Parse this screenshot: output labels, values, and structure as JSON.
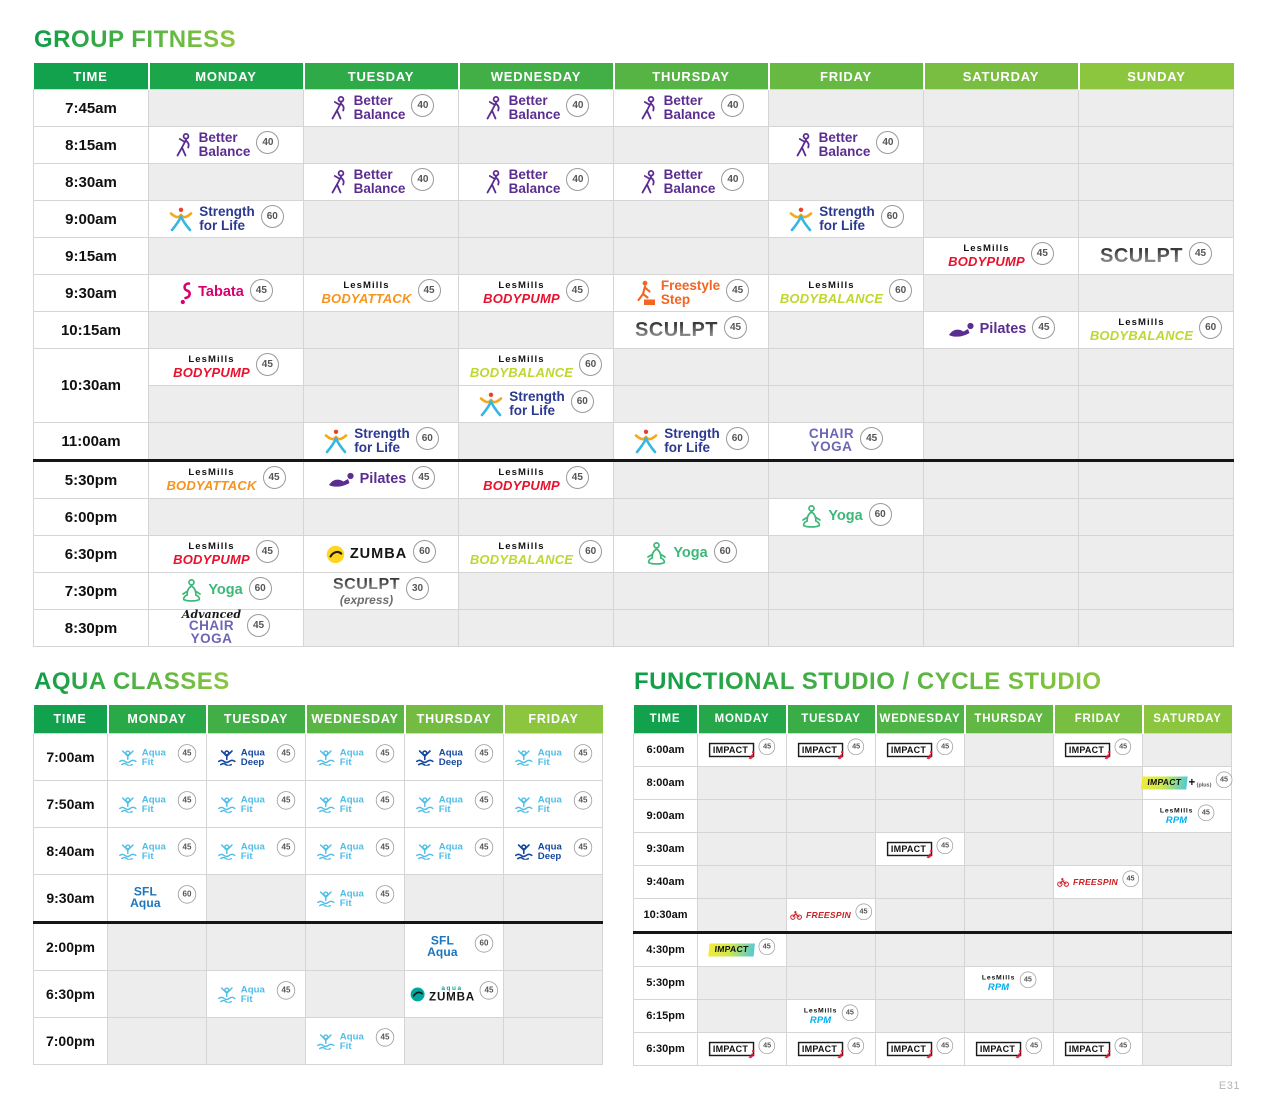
{
  "page": {
    "footer": "E31"
  },
  "colors": {
    "header_green_start": "#12A14C",
    "header_green_end": "#8CC63F",
    "title_gradient_start": "#0E9C49",
    "title_gradient_end": "#8CC63F",
    "empty_cell": "#EDEDED",
    "grid_line": "#D5D5D5",
    "divider_black": "#161616",
    "better_balance_purple": "#5C2D91",
    "strength_for_life_blue": "#2B3990",
    "tabata_magenta": "#D6006F",
    "freestyle_orange": "#F26522",
    "yoga_green": "#3CB878",
    "bodypump_red": "#E8112D",
    "bodyattack_orange": "#F7941D",
    "bodybalance_lime": "#BFD730",
    "rpm_cyan": "#00AEEF",
    "freespin_red": "#CB2026",
    "aqua_fit_blue": "#4FBEE8",
    "aqua_deep_navy": "#15489E",
    "sfl_aqua_blue": "#1B75BC",
    "zumba_yellow": "#FFD51E",
    "aqua_zumba_teal": "#00A79D",
    "chair_yoga_purple": "#6B66B5"
  },
  "classes": {
    "better-balance": {
      "id": "better-balance",
      "type": "figure",
      "icon": "better-balance-icon",
      "lines": [
        "Better",
        "Balance"
      ],
      "color": "#5C2D91"
    },
    "strength-for-life": {
      "id": "strength-for-life",
      "type": "figure",
      "icon": "strength-for-life-icon",
      "lines": [
        "Strength",
        "for Life"
      ],
      "color": "#2B3990"
    },
    "tabata": {
      "id": "tabata",
      "type": "figure",
      "icon": "tabata-icon",
      "lines": [
        "Tabata"
      ],
      "color": "#D6006F"
    },
    "freestyle-step": {
      "id": "freestyle-step",
      "type": "figure",
      "icon": "freestyle-step-icon",
      "lines": [
        "Freestyle",
        "Step"
      ],
      "color": "#F26522"
    },
    "pilates": {
      "id": "pilates",
      "type": "figure",
      "icon": "pilates-icon",
      "lines": [
        "Pilates"
      ],
      "color": "#5C2D91"
    },
    "yoga": {
      "id": "yoga",
      "type": "figure",
      "icon": "yoga-icon",
      "lines": [
        "Yoga"
      ],
      "color": "#3CB878"
    },
    "aqua-fit": {
      "id": "aqua-fit",
      "type": "figure",
      "icon": "aqua-fit-icon",
      "lines": [
        "Aqua Fit"
      ],
      "color": "#4FBEE8"
    },
    "aqua-deep": {
      "id": "aqua-deep",
      "type": "figure",
      "icon": "aqua-deep-icon",
      "lines": [
        "Aqua Deep"
      ],
      "color": "#15489E"
    },
    "bodypump": {
      "id": "bodypump",
      "type": "lesmills",
      "label": "LesMills",
      "brand": "BODYPUMP",
      "color": "#E8112D"
    },
    "bodyattack": {
      "id": "bodyattack",
      "type": "lesmills",
      "label": "LesMills",
      "brand": "BODYATTACK",
      "color": "#F7941D"
    },
    "bodybalance": {
      "id": "bodybalance",
      "type": "lesmills",
      "label": "LesMills",
      "brand": "BODYBALANCE",
      "color": "#BFD730"
    },
    "rpm": {
      "id": "rpm",
      "type": "lesmills",
      "label": "LesMills",
      "brand": "RPM",
      "color": "#00AEEF"
    },
    "sculpt": {
      "id": "sculpt",
      "type": "sculpt",
      "text": "SCULPT"
    },
    "sculpt-express": {
      "id": "sculpt-express",
      "type": "sculpt",
      "text": "SCULPT",
      "sub": "(express)"
    },
    "chair-yoga": {
      "id": "chair-yoga",
      "type": "stack",
      "lines": [
        "CHAIR",
        "YOGA"
      ],
      "color": "#6B66B5"
    },
    "advanced-chair-yoga": {
      "id": "advanced-chair-yoga",
      "type": "stack",
      "script": "Advanced",
      "lines": [
        "CHAIR",
        "YOGA"
      ],
      "color": "#6B66B5"
    },
    "sfl-aqua": {
      "id": "sfl-aqua",
      "type": "stack",
      "lines": [
        "SFL Aqua"
      ],
      "color": "#1B75BC"
    },
    "zumba": {
      "id": "zumba",
      "type": "zumba",
      "brand": "ZUMBA",
      "circle": "#FFD51E"
    },
    "aqua-zumba": {
      "id": "aqua-zumba",
      "type": "zumba",
      "brand": "ZUMBA",
      "over": "aqua",
      "circle": "#00A79D",
      "over_color": "#00A79D"
    },
    "impact": {
      "id": "impact",
      "type": "impact",
      "text": "IMPACT",
      "variant": "box"
    },
    "impact-colour": {
      "id": "impact-colour",
      "type": "impact",
      "text": "IMPACT",
      "variant": "colour"
    },
    "impact-plus": {
      "id": "impact-plus",
      "type": "impact",
      "text": "IMPACT",
      "variant": "plus",
      "plus": "+",
      "sub": "(plus)"
    },
    "freespin": {
      "id": "freespin",
      "type": "freespin",
      "text_light": "FREE",
      "text_bold": "SPIN",
      "color": "#CB2026"
    }
  },
  "sections": {
    "group": {
      "title": "GROUP FITNESS",
      "columns": [
        "TIME",
        "MONDAY",
        "TUESDAY",
        "WEDNESDAY",
        "THURSDAY",
        "FRIDAY",
        "SATURDAY",
        "SUNDAY"
      ],
      "time_col_width": 115,
      "rows": [
        {
          "time": "7:45am",
          "cells": [
            null,
            {
              "class": "better-balance",
              "min": 40
            },
            {
              "class": "better-balance",
              "min": 40
            },
            {
              "class": "better-balance",
              "min": 40
            },
            null,
            null,
            null
          ]
        },
        {
          "time": "8:15am",
          "cells": [
            {
              "class": "better-balance",
              "min": 40
            },
            null,
            null,
            null,
            {
              "class": "better-balance",
              "min": 40
            },
            null,
            null
          ]
        },
        {
          "time": "8:30am",
          "cells": [
            null,
            {
              "class": "better-balance",
              "min": 40
            },
            {
              "class": "better-balance",
              "min": 40
            },
            {
              "class": "better-balance",
              "min": 40
            },
            null,
            null,
            null
          ]
        },
        {
          "time": "9:00am",
          "cells": [
            {
              "class": "strength-for-life",
              "min": 60
            },
            null,
            null,
            null,
            {
              "class": "strength-for-life",
              "min": 60
            },
            null,
            null
          ]
        },
        {
          "time": "9:15am",
          "cells": [
            null,
            null,
            null,
            null,
            null,
            {
              "class": "bodypump",
              "min": 45
            },
            {
              "class": "sculpt",
              "min": 45
            }
          ]
        },
        {
          "time": "9:30am",
          "cells": [
            {
              "class": "tabata",
              "min": 45
            },
            {
              "class": "bodyattack",
              "min": 45
            },
            {
              "class": "bodypump",
              "min": 45
            },
            {
              "class": "freestyle-step",
              "min": 45
            },
            {
              "class": "bodybalance",
              "min": 60
            },
            null,
            null
          ]
        },
        {
          "time": "10:15am",
          "cells": [
            null,
            null,
            null,
            {
              "class": "sculpt",
              "min": 45
            },
            null,
            {
              "class": "pilates",
              "min": 45
            },
            {
              "class": "bodybalance",
              "min": 60
            }
          ]
        },
        {
          "time": "10:30am",
          "rowspan": 2,
          "cells": [
            {
              "class": "bodypump",
              "min": 45
            },
            null,
            {
              "class": "bodybalance",
              "min": 60
            },
            null,
            null,
            null,
            null
          ]
        },
        {
          "cont": true,
          "cells": [
            null,
            null,
            {
              "class": "strength-for-life",
              "min": 60
            },
            null,
            null,
            null,
            null
          ]
        },
        {
          "time": "11:00am",
          "cells": [
            null,
            {
              "class": "strength-for-life",
              "min": 60
            },
            null,
            {
              "class": "strength-for-life",
              "min": 60
            },
            {
              "class": "chair-yoga",
              "min": 45
            },
            null,
            null
          ]
        },
        {
          "time": "5:30pm",
          "divider": true,
          "cells": [
            {
              "class": "bodyattack",
              "min": 45
            },
            {
              "class": "pilates",
              "min": 45
            },
            {
              "class": "bodypump",
              "min": 45
            },
            null,
            null,
            null,
            null
          ]
        },
        {
          "time": "6:00pm",
          "cells": [
            null,
            null,
            null,
            null,
            {
              "class": "yoga",
              "min": 60
            },
            null,
            null
          ]
        },
        {
          "time": "6:30pm",
          "cells": [
            {
              "class": "bodypump",
              "min": 45
            },
            {
              "class": "zumba",
              "min": 60
            },
            {
              "class": "bodybalance",
              "min": 60
            },
            {
              "class": "yoga",
              "min": 60
            },
            null,
            null,
            null
          ]
        },
        {
          "time": "7:30pm",
          "cells": [
            {
              "class": "yoga",
              "min": 60
            },
            {
              "class": "sculpt-express",
              "min": 30
            },
            null,
            null,
            null,
            null,
            null
          ]
        },
        {
          "time": "8:30pm",
          "cells": [
            {
              "class": "advanced-chair-yoga",
              "min": 45
            },
            null,
            null,
            null,
            null,
            null,
            null
          ]
        }
      ]
    },
    "aqua": {
      "title": "AQUA CLASSES",
      "columns": [
        "TIME",
        "MONDAY",
        "TUESDAY",
        "WEDNESDAY",
        "THURSDAY",
        "FRIDAY"
      ],
      "time_col_width": 74,
      "rows": [
        {
          "time": "7:00am",
          "cells": [
            {
              "class": "aqua-fit",
              "min": 45
            },
            {
              "class": "aqua-deep",
              "min": 45
            },
            {
              "class": "aqua-fit",
              "min": 45
            },
            {
              "class": "aqua-deep",
              "min": 45
            },
            {
              "class": "aqua-fit",
              "min": 45
            }
          ]
        },
        {
          "time": "7:50am",
          "cells": [
            {
              "class": "aqua-fit",
              "min": 45
            },
            {
              "class": "aqua-fit",
              "min": 45
            },
            {
              "class": "aqua-fit",
              "min": 45
            },
            {
              "class": "aqua-fit",
              "min": 45
            },
            {
              "class": "aqua-fit",
              "min": 45
            }
          ]
        },
        {
          "time": "8:40am",
          "cells": [
            {
              "class": "aqua-fit",
              "min": 45
            },
            {
              "class": "aqua-fit",
              "min": 45
            },
            {
              "class": "aqua-fit",
              "min": 45
            },
            {
              "class": "aqua-fit",
              "min": 45
            },
            {
              "class": "aqua-deep",
              "min": 45
            }
          ]
        },
        {
          "time": "9:30am",
          "cells": [
            {
              "class": "sfl-aqua",
              "min": 60
            },
            null,
            {
              "class": "aqua-fit",
              "min": 45
            },
            null,
            null
          ]
        },
        {
          "time": "2:00pm",
          "divider": true,
          "cells": [
            null,
            null,
            null,
            {
              "class": "sfl-aqua",
              "min": 60
            },
            null
          ]
        },
        {
          "time": "6:30pm",
          "cells": [
            null,
            {
              "class": "aqua-fit",
              "min": 45
            },
            null,
            {
              "class": "aqua-zumba",
              "min": 45
            },
            null
          ]
        },
        {
          "time": "7:00pm",
          "cells": [
            null,
            null,
            {
              "class": "aqua-fit",
              "min": 45
            },
            null,
            null
          ]
        }
      ]
    },
    "functional": {
      "title": "FUNCTIONAL STUDIO / CYCLE STUDIO",
      "columns": [
        "TIME",
        "MONDAY",
        "TUESDAY",
        "WEDNESDAY",
        "THURSDAY",
        "FRIDAY",
        "SATURDAY"
      ],
      "time_col_width": 64,
      "rows": [
        {
          "time": "6:00am",
          "cells": [
            {
              "class": "impact",
              "min": 45
            },
            {
              "class": "impact",
              "min": 45
            },
            {
              "class": "impact",
              "min": 45
            },
            null,
            {
              "class": "impact",
              "min": 45
            },
            null
          ]
        },
        {
          "time": "8:00am",
          "cells": [
            null,
            null,
            null,
            null,
            null,
            {
              "class": "impact-plus",
              "min": 45
            }
          ]
        },
        {
          "time": "9:00am",
          "cells": [
            null,
            null,
            null,
            null,
            null,
            {
              "class": "rpm",
              "min": 45
            }
          ]
        },
        {
          "time": "9:30am",
          "cells": [
            null,
            null,
            {
              "class": "impact",
              "min": 45
            },
            null,
            null,
            null
          ]
        },
        {
          "time": "9:40am",
          "cells": [
            null,
            null,
            null,
            null,
            {
              "class": "freespin",
              "min": 45
            },
            null
          ]
        },
        {
          "time": "10:30am",
          "cells": [
            null,
            {
              "class": "freespin",
              "min": 45
            },
            null,
            null,
            null,
            null
          ]
        },
        {
          "time": "4:30pm",
          "divider": true,
          "cells": [
            {
              "class": "impact-colour",
              "min": 45
            },
            null,
            null,
            null,
            null,
            null
          ]
        },
        {
          "time": "5:30pm",
          "cells": [
            null,
            null,
            null,
            {
              "class": "rpm",
              "min": 45
            },
            null,
            null
          ]
        },
        {
          "time": "6:15pm",
          "cells": [
            null,
            {
              "class": "rpm",
              "min": 45
            },
            null,
            null,
            null,
            null
          ]
        },
        {
          "time": "6:30pm",
          "cells": [
            {
              "class": "impact",
              "min": 45
            },
            {
              "class": "impact",
              "min": 45
            },
            {
              "class": "impact",
              "min": 45
            },
            {
              "class": "impact",
              "min": 45
            },
            {
              "class": "impact",
              "min": 45
            },
            null
          ]
        }
      ]
    }
  }
}
